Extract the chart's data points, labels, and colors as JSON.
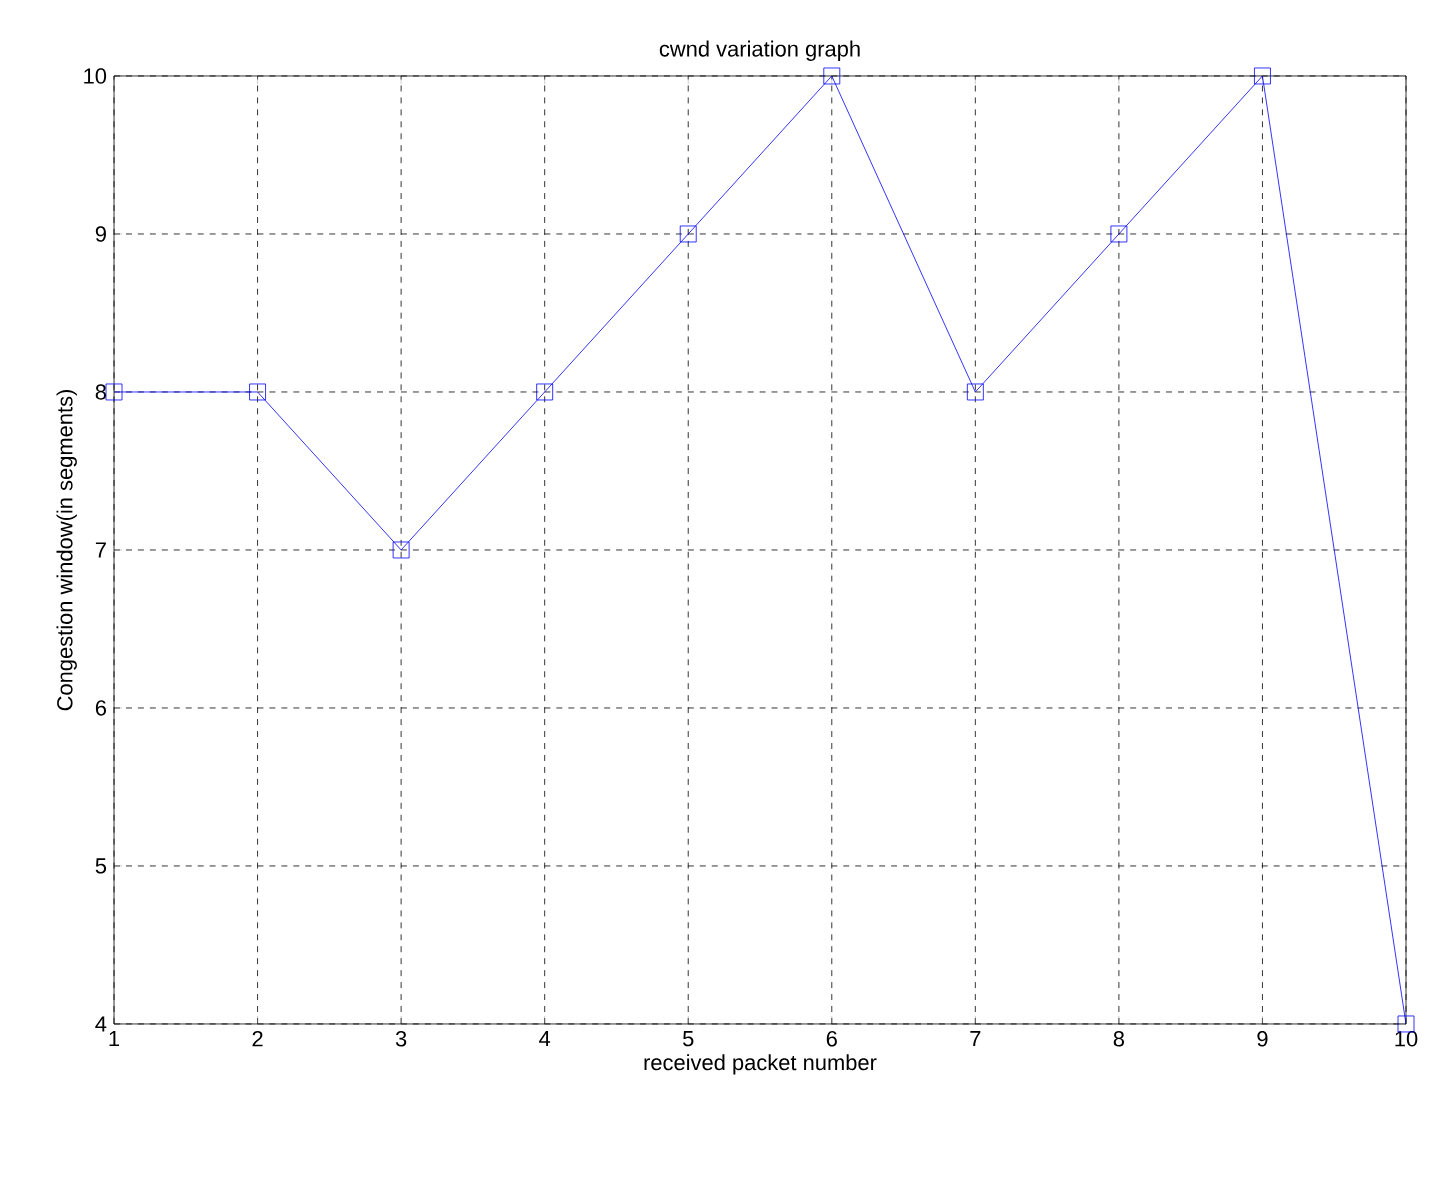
{
  "chart_data": {
    "type": "line",
    "title": "cwnd variation graph",
    "xlabel": "received packet number",
    "ylabel": "Congestion window(in segments)",
    "x": [
      1,
      2,
      3,
      4,
      5,
      6,
      7,
      8,
      9,
      10
    ],
    "series": [
      {
        "color": "#0000ff",
        "values": [
          8,
          8,
          7,
          8,
          9,
          10,
          8,
          9,
          10,
          4
        ]
      }
    ],
    "xlim": [
      1,
      10
    ],
    "ylim": [
      4,
      10
    ],
    "xticks": [
      1,
      2,
      3,
      4,
      5,
      6,
      7,
      8,
      9,
      10
    ],
    "yticks": [
      4,
      5,
      6,
      7,
      8,
      9,
      10
    ],
    "grid": true,
    "marker": "square",
    "line_style": "solid"
  }
}
